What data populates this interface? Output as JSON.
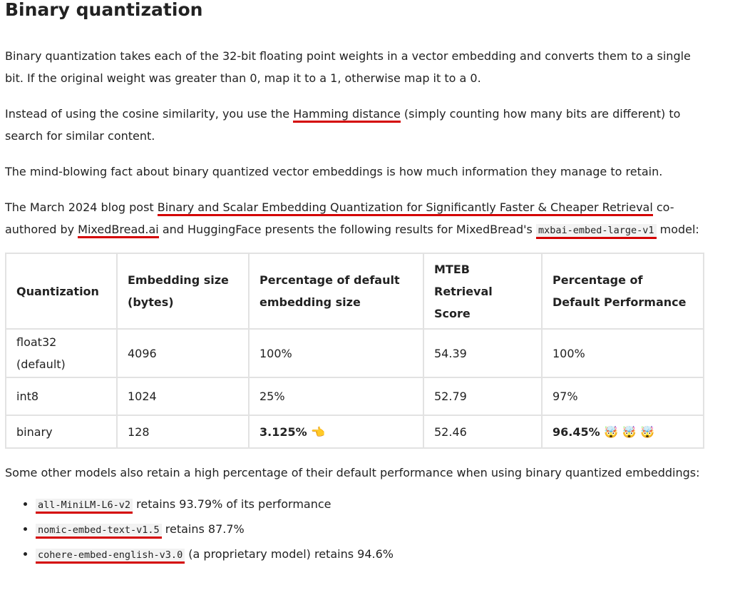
{
  "heading": "Binary quantization",
  "p1": {
    "a": "Binary quantization takes each of the 32-bit floating point weights in a vector embedding and converts them to a single bit. If the original weight was greater than 0, map it to a 1, otherwise map it to a 0."
  },
  "p2": {
    "pre": "Instead of using the cosine similarity, you use the ",
    "link": "Hamming distance",
    "post": " (simply counting how many bits are different) to search for similar content."
  },
  "p3": "The mind-blowing fact about binary quantized vector embeddings is how much information they manage to retain.",
  "p4": {
    "pre": "The March 2024 blog post ",
    "link1": "Binary and Scalar Embedding Quantization for Significantly Faster & Cheaper Retrieval",
    "mid1": " co-authored by ",
    "link2": "MixedBread.ai",
    "mid2": " and HuggingFace presents the following results for MixedBread's ",
    "code": "mxbai-embed-large-v1",
    "post": " model:"
  },
  "table": {
    "headers": [
      "Quantization",
      "Embedding size (bytes)",
      "Percentage of default embedding size",
      "MTEB Retrieval Score",
      "Percentage of Default Performance"
    ],
    "rows": [
      [
        "float32 (default)",
        "4096",
        "100%",
        "54.39",
        "100%"
      ],
      [
        "int8",
        "1024",
        "25%",
        "52.79",
        "97%"
      ],
      [
        "binary",
        "128",
        "3.125% 👈",
        "52.46",
        "96.45% 🤯 🤯 🤯"
      ]
    ]
  },
  "p5": "Some other models also retain a high percentage of their default performance when using binary quantized embeddings:",
  "list": [
    {
      "code": "all-MiniLM-L6-v2",
      "text": " retains 93.79% of its performance"
    },
    {
      "code": "nomic-embed-text-v1.5",
      "text": " retains 87.7%"
    },
    {
      "code": "cohere-embed-english-v3.0",
      "text": " (a proprietary model) retains 94.6%"
    }
  ]
}
